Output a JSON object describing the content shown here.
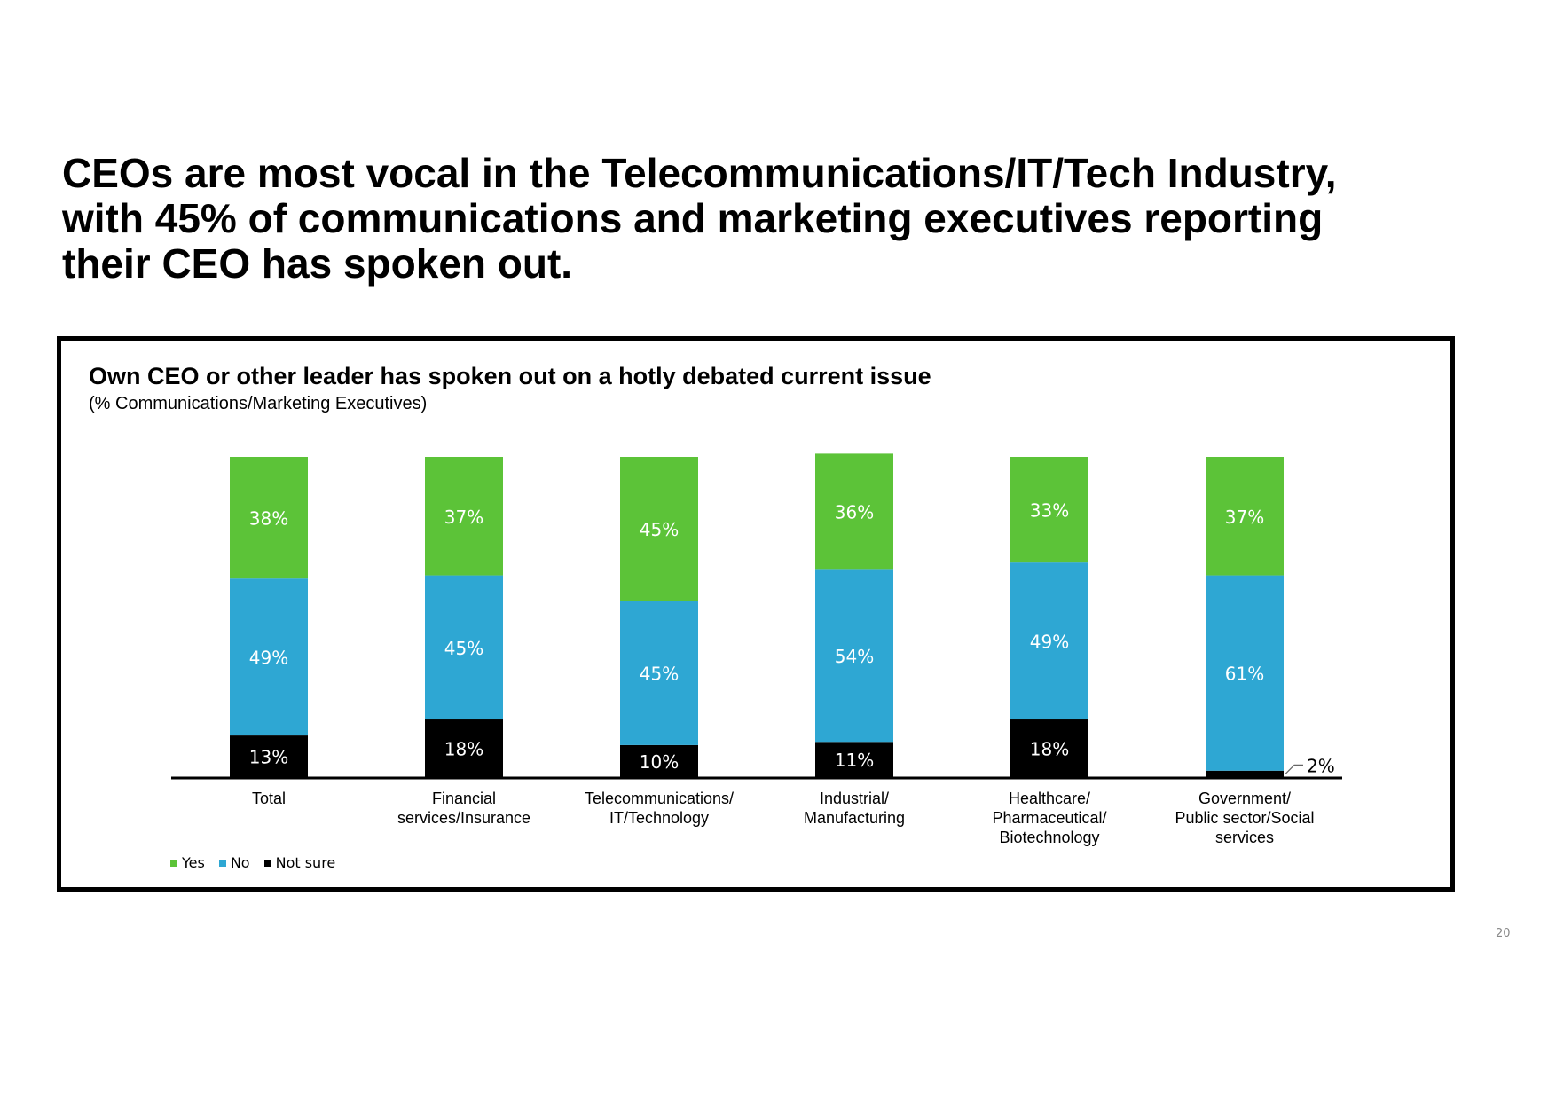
{
  "headline": [
    "CEOs are most vocal in the Telecommunications/IT/Tech Industry,",
    "with 45% of communications and marketing executives reporting",
    "their CEO has spoken out."
  ],
  "page_number": "20",
  "colors": {
    "yes": "#5cc338",
    "no": "#2ea7d3",
    "not_sure": "#000000"
  },
  "chart_data": {
    "type": "bar",
    "stacked": true,
    "title": "Own CEO or other leader has spoken out on a hotly debated current issue",
    "subtitle": "(% Communications/Marketing Executives)",
    "categories": [
      [
        "Total"
      ],
      [
        "Financial",
        "services/Insurance"
      ],
      [
        "Telecommunications/",
        "IT/Technology"
      ],
      [
        "Industrial/",
        "Manufacturing"
      ],
      [
        "Healthcare/",
        "Pharmaceutical/",
        "Biotechnology"
      ],
      [
        "Government/",
        "Public sector/Social",
        "services"
      ]
    ],
    "series": [
      {
        "name": "Not sure",
        "values": [
          13,
          18,
          10,
          11,
          18,
          2
        ]
      },
      {
        "name": "No",
        "values": [
          49,
          45,
          45,
          54,
          49,
          61
        ]
      },
      {
        "name": "Yes",
        "values": [
          38,
          37,
          45,
          36,
          33,
          37
        ]
      }
    ],
    "ylim": [
      0,
      100
    ],
    "legend": "bottom-left",
    "grid": false
  }
}
